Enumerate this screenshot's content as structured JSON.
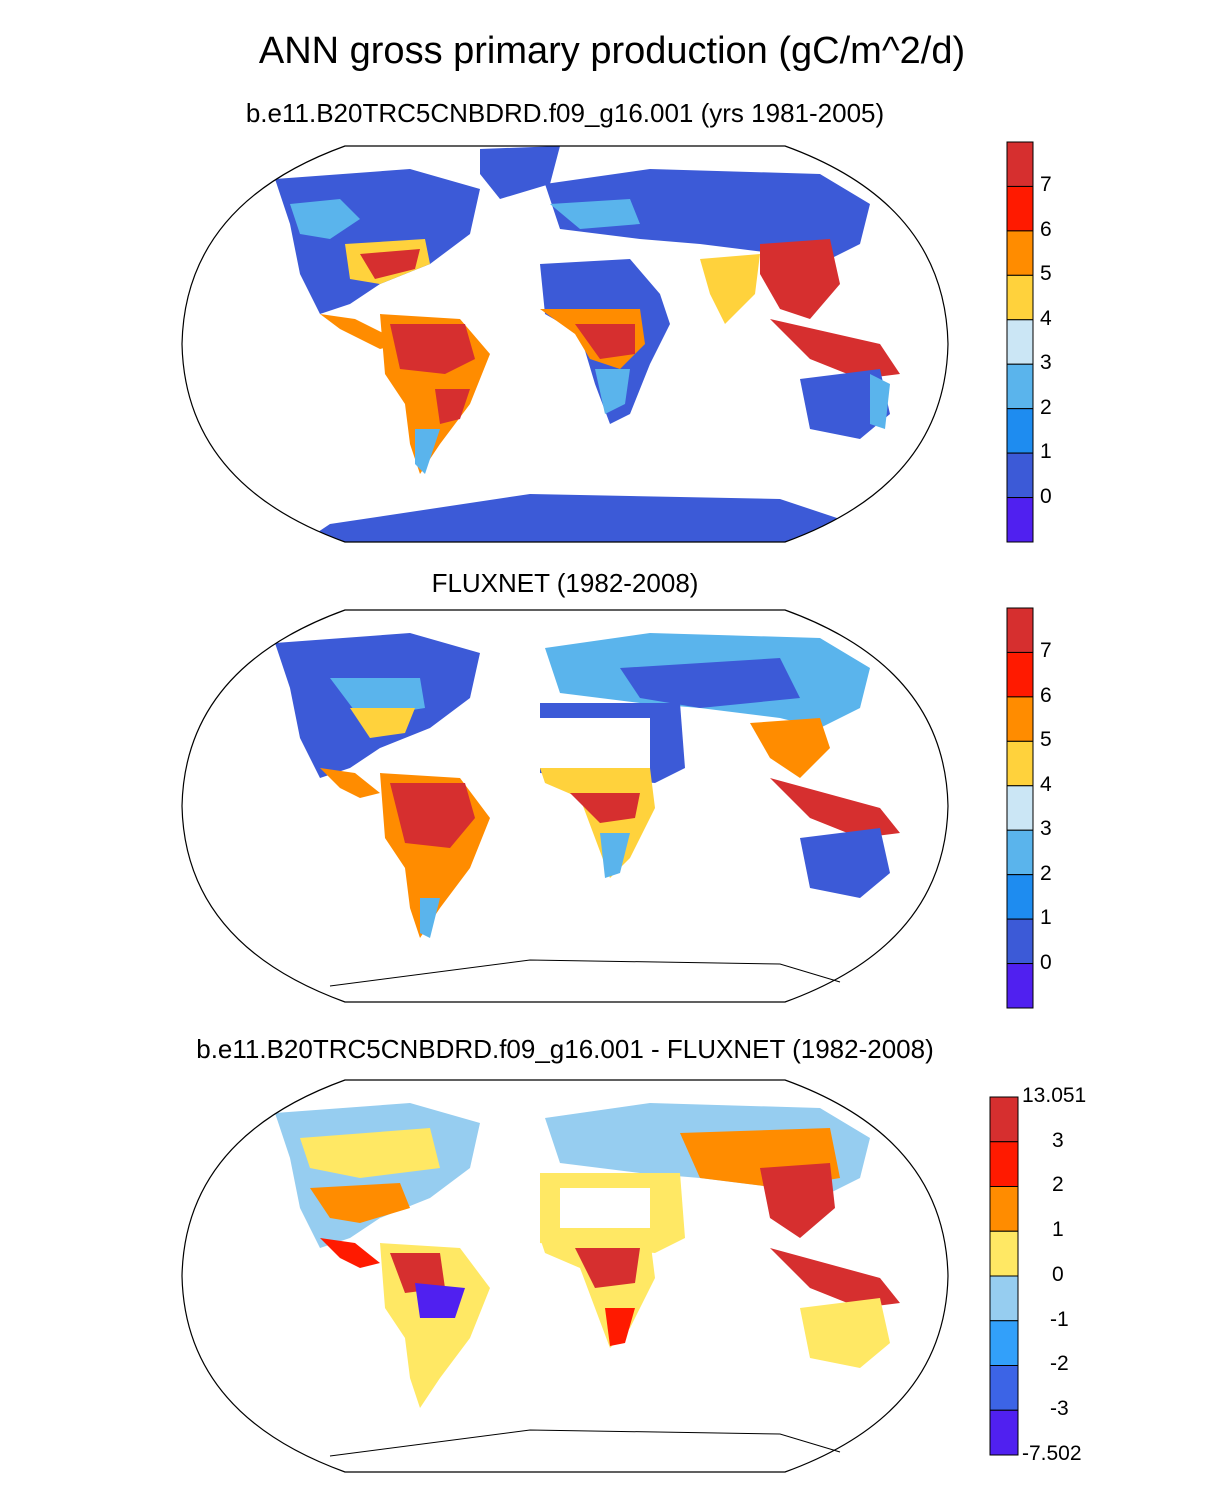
{
  "title": "ANN gross primary production (gC/m^2/d)",
  "panels": [
    {
      "id": "model",
      "title": "b.e11.B20TRC5CNBDRD.f09_g16.001 (yrs 1981-2005)"
    },
    {
      "id": "obs",
      "title": "FLUXNET (1982-2008)"
    },
    {
      "id": "diff",
      "title": "b.e11.B20TRC5CNBDRD.f09_g16.001 - FLUXNET (1982-2008)"
    }
  ],
  "colorbars": {
    "gpp": {
      "labels": [
        "7",
        "6",
        "5",
        "4",
        "3",
        "2",
        "1",
        "0"
      ],
      "colors": [
        "#d62f2f",
        "#ff1a00",
        "#ff8c00",
        "#ffd23c",
        "#cbe6f5",
        "#5ab4ec",
        "#1e8cf0",
        "#3c5ad7",
        "#5020f0"
      ]
    },
    "diff": {
      "labels": [
        "13.051",
        "3",
        "2",
        "1",
        "0",
        "-1",
        "-2",
        "-3",
        "-7.502"
      ],
      "colors": [
        "#d62f2f",
        "#ff1a00",
        "#ff8c00",
        "#ffe864",
        "#96cdf0",
        "#32a0fa",
        "#3c64e6",
        "#5020f0"
      ]
    }
  }
}
